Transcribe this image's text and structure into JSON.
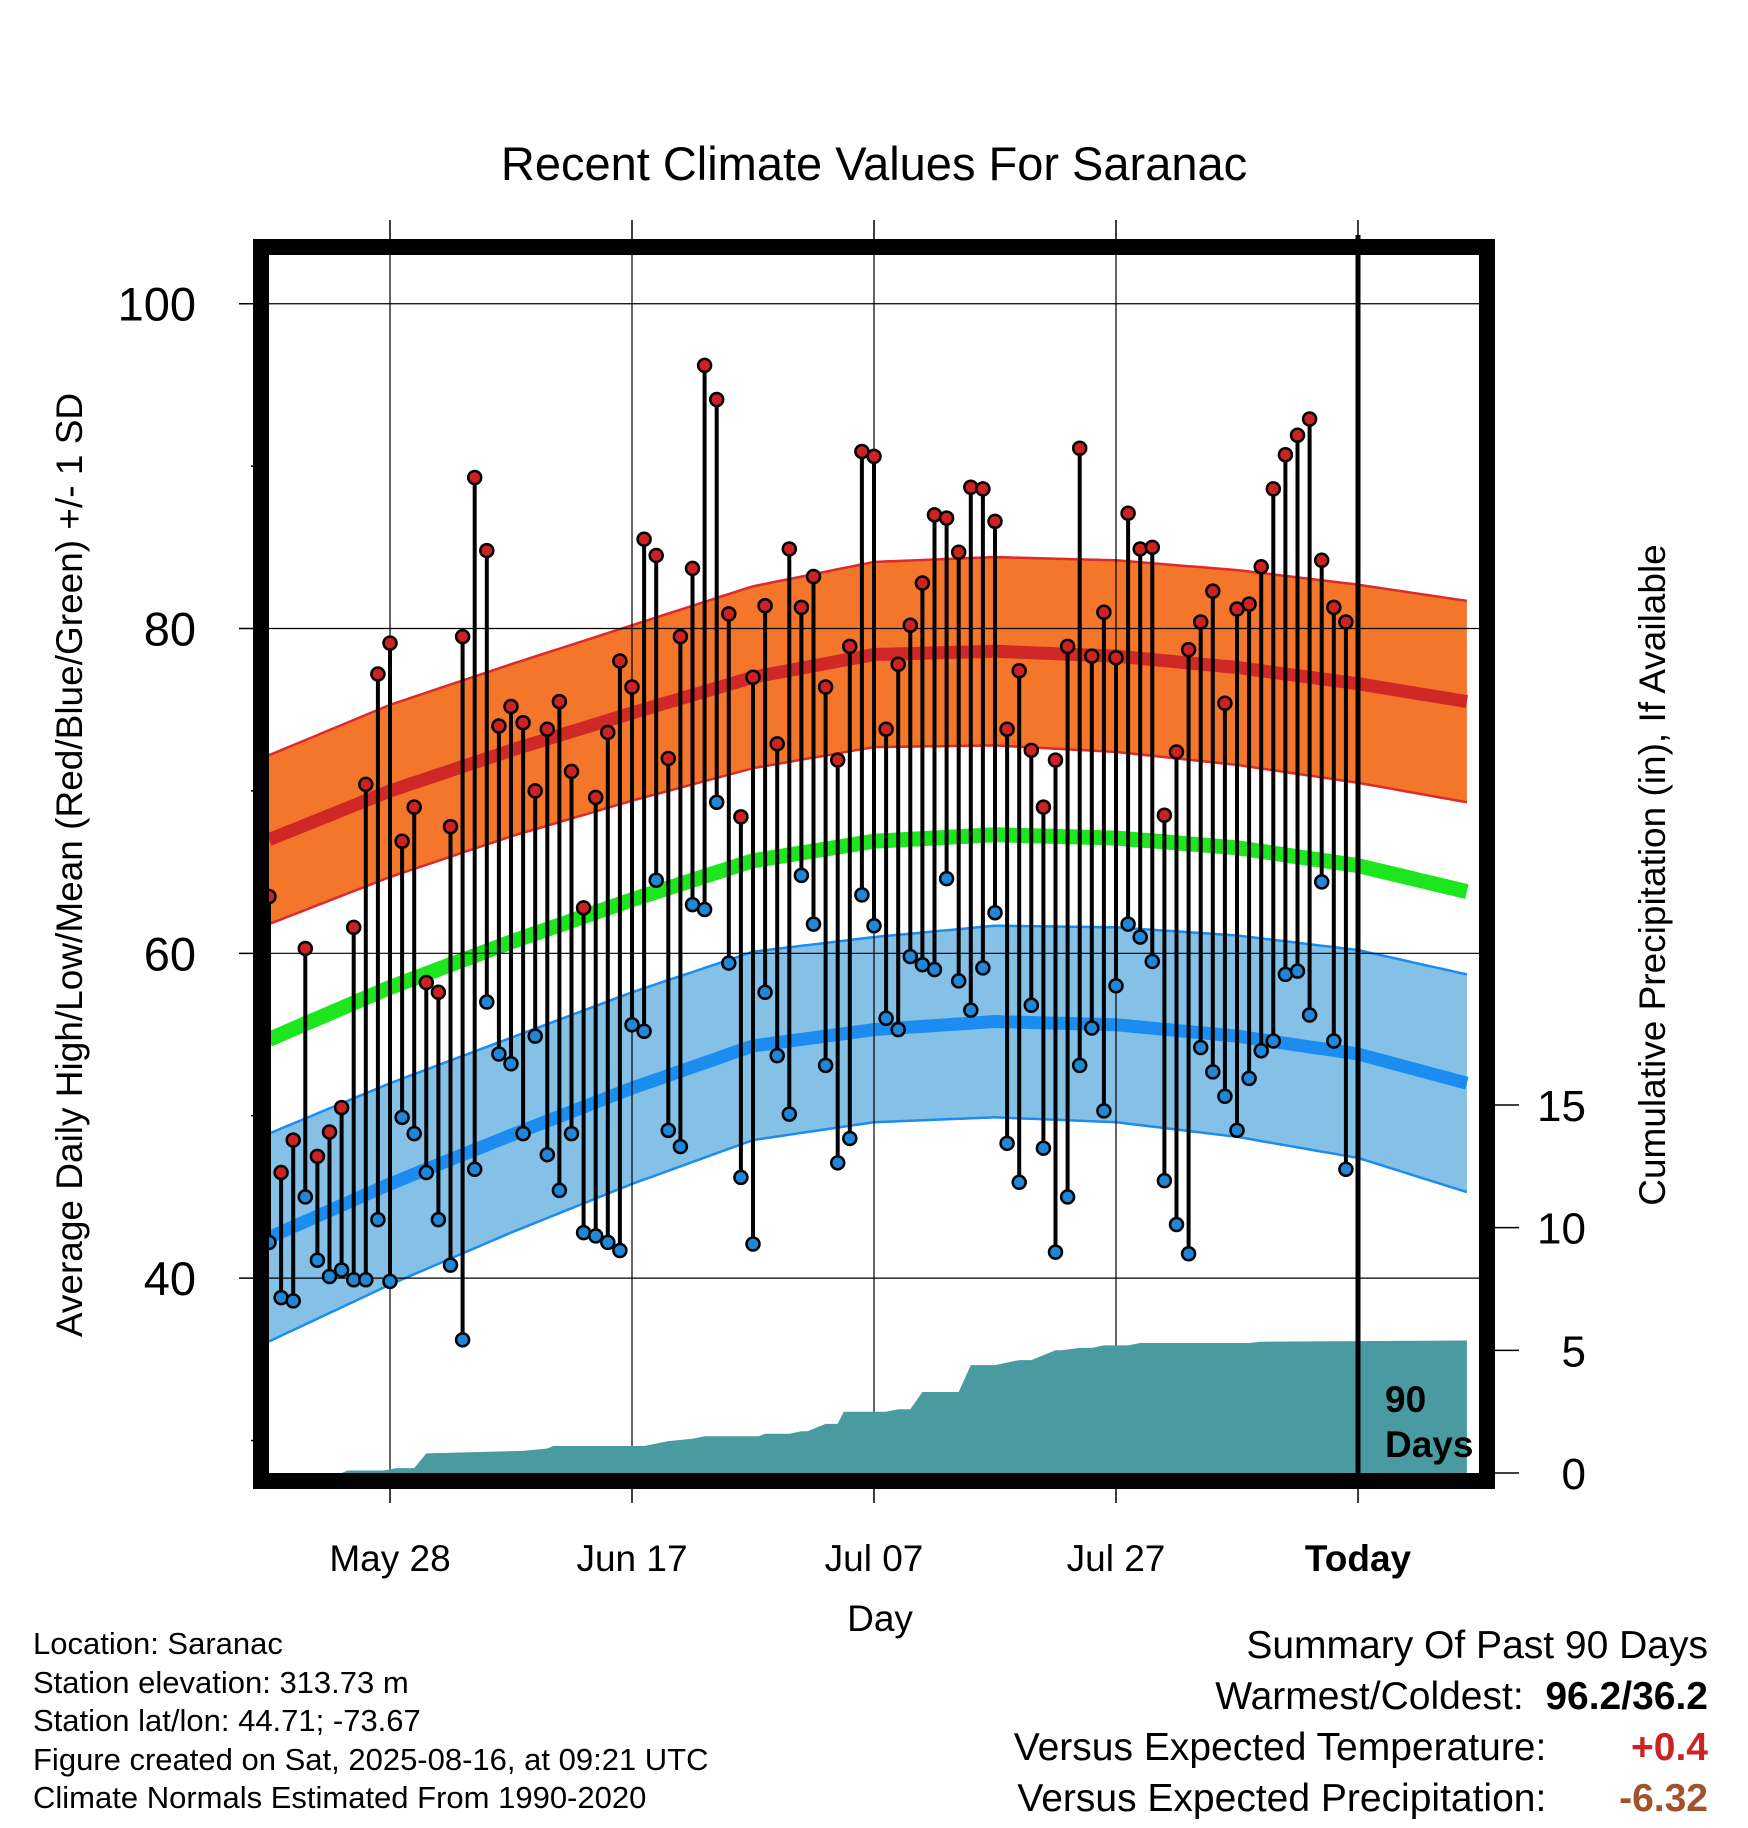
{
  "chart_data": {
    "type": "line",
    "title": "Recent Climate Values For Saranac",
    "xlabel": "Day",
    "ylabel": "Average Daily High/Low/Mean (Red/Blue/Green) +/- 1 SD",
    "ylabel_right": "Cumulative Precipitation (in), If Available",
    "xlim": [
      0,
      100
    ],
    "ylim": [
      28,
      103
    ],
    "ylim_right": [
      0,
      30
    ],
    "x_tick_labels": [
      {
        "x": 10,
        "label": "May 28"
      },
      {
        "x": 30,
        "label": "Jun 17"
      },
      {
        "x": 50,
        "label": "Jul 07"
      },
      {
        "x": 70,
        "label": "Jul 27"
      },
      {
        "x": 90,
        "label": "Today"
      }
    ],
    "y_ticks": [
      40,
      60,
      80,
      100
    ],
    "y_ticks_right": [
      0,
      5,
      10,
      15
    ],
    "grid": true,
    "today_marker": {
      "x": 90,
      "label_line1": "90",
      "label_line2": "Days"
    },
    "normals": {
      "x": [
        0,
        10,
        20,
        30,
        40,
        50,
        60,
        70,
        80,
        90,
        99
      ],
      "high": [
        67.0,
        70.0,
        72.5,
        74.8,
        77.0,
        78.4,
        78.6,
        78.3,
        77.6,
        76.6,
        75.5
      ],
      "high_sd": [
        5.2,
        5.3,
        5.3,
        5.4,
        5.6,
        5.7,
        5.8,
        5.9,
        6.0,
        6.1,
        6.2
      ],
      "mean": [
        54.7,
        57.9,
        60.7,
        63.3,
        65.7,
        66.9,
        67.3,
        67.1,
        66.5,
        65.4,
        63.8
      ],
      "low": [
        42.5,
        45.8,
        48.8,
        51.7,
        54.3,
        55.3,
        55.8,
        55.6,
        54.9,
        53.8,
        52.0
      ],
      "low_sd": [
        6.4,
        6.2,
        6.0,
        5.9,
        5.8,
        5.7,
        5.9,
        6.0,
        6.2,
        6.4,
        6.7
      ]
    },
    "series": [
      {
        "name": "High",
        "color": "#cc2222",
        "values": [
          63.5,
          46.5,
          48.5,
          60.3,
          47.5,
          49,
          50.5,
          61.6,
          70.4,
          77.2,
          79.1,
          66.9,
          69,
          58.2,
          57.6,
          67.8,
          79.5,
          89.3,
          84.8,
          74,
          75.2,
          74.2,
          70,
          73.8,
          75.5,
          71.2,
          62.8,
          69.6,
          73.6,
          78,
          76.4,
          85.5,
          84.5,
          72,
          79.5,
          83.7,
          96.2,
          94.1,
          80.9,
          68.4,
          77,
          81.4,
          72.9,
          84.9,
          81.3,
          83.2,
          76.4,
          71.9,
          78.9,
          90.9,
          90.6,
          73.8,
          77.8,
          80.2,
          82.8,
          87,
          86.8,
          84.7,
          88.7,
          88.6,
          86.6,
          73.8,
          77.4,
          72.5,
          69,
          71.9,
          78.9,
          91.1,
          78.3,
          81,
          78.2,
          87.1,
          84.9,
          85,
          68.5,
          72.4,
          78.7,
          80.4,
          82.3,
          75.4,
          81.2,
          81.5,
          83.8,
          88.6,
          90.7,
          91.9,
          92.9,
          84.2,
          81.3,
          80.4
        ]
      },
      {
        "name": "Low",
        "color": "#1f86d8",
        "values": [
          42.2,
          38.8,
          38.6,
          45,
          41.1,
          40.1,
          40.5,
          39.9,
          39.9,
          43.6,
          39.8,
          49.9,
          48.9,
          46.5,
          43.6,
          40.8,
          36.2,
          46.7,
          57,
          53.8,
          53.2,
          48.9,
          54.9,
          47.6,
          45.4,
          48.9,
          42.8,
          42.6,
          42.2,
          41.7,
          55.6,
          55.2,
          64.5,
          49.1,
          48.1,
          63,
          62.7,
          69.3,
          59.4,
          46.2,
          42.1,
          57.6,
          53.7,
          50.1,
          64.8,
          61.8,
          53.1,
          47.1,
          48.6,
          63.6,
          61.7,
          56,
          55.3,
          59.8,
          59.3,
          59,
          64.6,
          58.3,
          56.5,
          59.1,
          62.5,
          48.3,
          45.9,
          56.8,
          48,
          41.6,
          45,
          53.1,
          55.4,
          50.3,
          58,
          61.8,
          61,
          59.5,
          46,
          43.3,
          41.5,
          54.2,
          52.7,
          51.2,
          49.1,
          52.3,
          54,
          54.6,
          58.7,
          58.9,
          56.2,
          64.4,
          54.6,
          46.7
        ]
      }
    ],
    "precipitation_cumulative": {
      "x": [
        0,
        4,
        6,
        6.5,
        9.5,
        10.5,
        12,
        13,
        21,
        23,
        23.5,
        31,
        32,
        33,
        35,
        36,
        40.5,
        41,
        43,
        44,
        44.5,
        46,
        47,
        47.5,
        51,
        52,
        53,
        54,
        57,
        58,
        60,
        62,
        63,
        65,
        65.5,
        67,
        68,
        69,
        71,
        72,
        81,
        82,
        99
      ],
      "values": [
        0.0,
        0.0,
        0.0,
        0.1,
        0.1,
        0.2,
        0.2,
        0.8,
        0.9,
        1.0,
        1.1,
        1.1,
        1.2,
        1.3,
        1.4,
        1.5,
        1.5,
        1.6,
        1.6,
        1.7,
        1.7,
        2.0,
        2.0,
        2.5,
        2.5,
        2.6,
        2.6,
        3.3,
        3.3,
        4.4,
        4.4,
        4.6,
        4.6,
        5.0,
        5.0,
        5.1,
        5.1,
        5.2,
        5.2,
        5.3,
        5.3,
        5.35,
        5.4
      ]
    }
  },
  "info": {
    "location": "Location: Saranac",
    "elevation": "Station elevation: 313.73 m",
    "latlon": "Station lat/lon: 44.71; -73.67",
    "created": "Figure created on Sat, 2025-08-16, at 09:21 UTC",
    "normals": "Climate Normals Estimated From 1990-2020"
  },
  "summary": {
    "title": "Summary Of Past 90 Days",
    "warmest_label": "Warmest/Coldest:",
    "warmest_value": "96.2/36.2",
    "temp_label": "Versus Expected Temperature:",
    "temp_value": "+0.4",
    "temp_color": "#cc2222",
    "precip_label": "Versus Expected Precipitation:",
    "precip_value": "-6.32",
    "precip_color": "#a0522d"
  },
  "colors": {
    "high_band": "#f4762a",
    "high_line": "#d02727",
    "high_edge": "#dd2a2a",
    "mean_line": "#1ee61e",
    "low_band": "#85c0e6",
    "low_line": "#1b8cf0",
    "low_edge": "#1b8cf0",
    "precip": "#4a9aa2",
    "high_dot": "#cc2222",
    "low_dot": "#1f86d8"
  }
}
